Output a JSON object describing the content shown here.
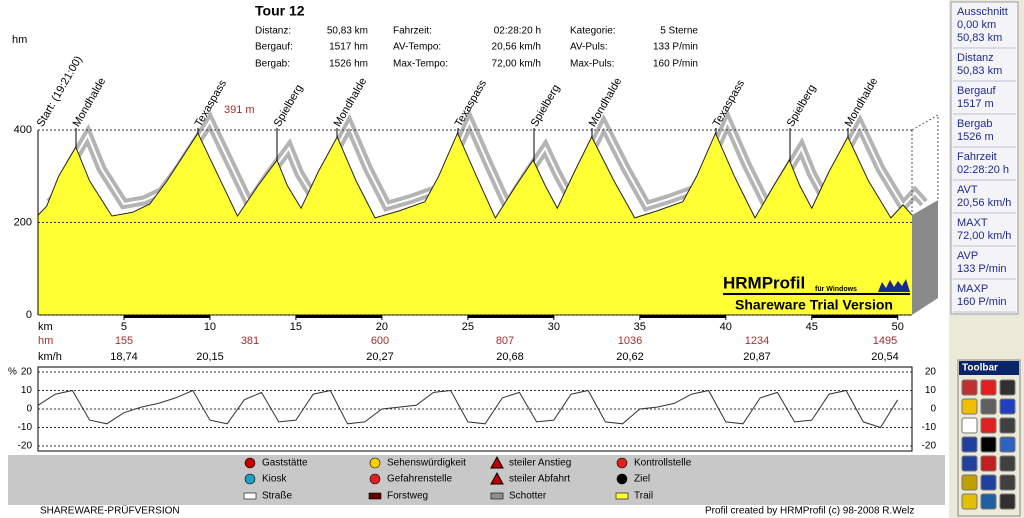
{
  "header": {
    "title": "Tour 12",
    "stats": [
      [
        {
          "label": "Distanz:",
          "value": "50,83 km"
        },
        {
          "label": "Fahrzeit:",
          "value": "02:28:20 h"
        },
        {
          "label": "Kategorie:",
          "value": "5 Sterne"
        }
      ],
      [
        {
          "label": "Bergauf:",
          "value": "1517 hm"
        },
        {
          "label": "AV-Tempo:",
          "value": "20,56 km/h"
        },
        {
          "label": "AV-Puls:",
          "value": "133 P/min"
        }
      ],
      [
        {
          "label": "Bergab:",
          "value": "1526 hm"
        },
        {
          "label": "Max-Tempo:",
          "value": "72,00 km/h"
        },
        {
          "label": "Max-Puls:",
          "value": "160 P/min"
        }
      ]
    ]
  },
  "chart_data": [
    {
      "type": "area",
      "y_label": "hm",
      "x_label": "km",
      "color": "#ffff33",
      "x": [
        0,
        0.5,
        1.2,
        2.2,
        3.0,
        4.3,
        5.5,
        6.5,
        7.5,
        9.3,
        10.5,
        11.6,
        12.8,
        13.9,
        14.5,
        15.3,
        16.3,
        17.4,
        18.5,
        19.6,
        21.0,
        22.5,
        23.3,
        24.4,
        25.5,
        26.6,
        27.8,
        28.8,
        29.5,
        30.2,
        31.2,
        32.2,
        33.5,
        34.7,
        36.0,
        37.5,
        38.3,
        39.4,
        40.5,
        41.7,
        42.8,
        43.7,
        44.3,
        45.0,
        46.0,
        47.1,
        48.3,
        49.6,
        50.3,
        50.83
      ],
      "values": [
        216,
        235,
        300,
        363,
        290,
        214,
        222,
        240,
        290,
        393,
        300,
        214,
        280,
        335,
        280,
        231,
        310,
        385,
        290,
        210,
        225,
        245,
        300,
        393,
        300,
        210,
        280,
        335,
        280,
        231,
        310,
        385,
        290,
        210,
        225,
        245,
        300,
        393,
        300,
        210,
        280,
        335,
        280,
        231,
        310,
        385,
        290,
        210,
        238,
        216
      ],
      "xlim": [
        0,
        50.83
      ],
      "ylim": [
        0,
        400
      ],
      "xticks": [
        5,
        10,
        15,
        20,
        25,
        30,
        35,
        40,
        45,
        50
      ],
      "yticks": [
        0,
        200,
        400
      ],
      "places": [
        "Start: (19:21:00)",
        "Mondhalde",
        "Texaspass",
        "Spielberg",
        "Mondhalde",
        "Texaspass",
        "Spielberg",
        "Mondhalde",
        "Texaspass",
        "Spielberg",
        "Mondhalde"
      ],
      "annotation": "391 m",
      "hm_row": {
        "label": "hm",
        "values": [
          155,
          381,
          600,
          807,
          1036,
          1234,
          1495
        ]
      },
      "speed_row": {
        "label": "km/h",
        "values": [
          "18,74",
          "20,15",
          "20,27",
          "20,68",
          "20,62",
          "20,87",
          "20,54"
        ]
      }
    },
    {
      "type": "line",
      "y_label": "%",
      "color": "#333333",
      "x": [
        0,
        1,
        2,
        3,
        4,
        5,
        6,
        7,
        8,
        9,
        10,
        11,
        12,
        13,
        14,
        15,
        16,
        17,
        18,
        19,
        20,
        21,
        22,
        23,
        24,
        25,
        26,
        27,
        28,
        29,
        30,
        31,
        32,
        33,
        34,
        35,
        36,
        37,
        38,
        39,
        40,
        41,
        42,
        43,
        44,
        45,
        46,
        47,
        48,
        49,
        50
      ],
      "values": [
        2,
        8,
        10,
        -6,
        -8,
        -2,
        1,
        3,
        6,
        10,
        -6,
        -8,
        5,
        9,
        -7,
        -6,
        8,
        10,
        -8,
        -7,
        0,
        1,
        2,
        9,
        10,
        -7,
        -8,
        6,
        9,
        -7,
        -6,
        8,
        10,
        -7,
        -8,
        0,
        1,
        3,
        8,
        10,
        -7,
        -8,
        6,
        9,
        -7,
        -6,
        8,
        10,
        -7,
        -10,
        5
      ],
      "xlim": [
        0,
        50.83
      ],
      "ylim": [
        -20,
        20
      ],
      "yticks": [
        20,
        10,
        0,
        -10,
        -20
      ],
      "y2ticks": [
        20,
        10,
        0,
        -10,
        -20
      ],
      "grid": true
    }
  ],
  "watermark": {
    "title": "HRMProfil",
    "subtitle": "für Windows",
    "notice": "Shareware Trial  Version"
  },
  "legend": [
    "Gaststätte",
    "Kiosk",
    "Straße",
    "Sehenswürdigkeit",
    "Gefahrenstelle",
    "Forstweg",
    "steiler Anstieg",
    "steiler Abfahrt",
    "Schotter",
    "Kontrollstelle",
    "Ziel",
    "Trail"
  ],
  "footer": {
    "left": "SHAREWARE-PRÜFVERSION",
    "right": "Profil created by HRMProfil (c) 98-2008 R.Welz"
  },
  "sidebar": [
    {
      "label": "Ausschnitt",
      "values": [
        "0,00 km",
        "50,83 km"
      ]
    },
    {
      "label": "Distanz",
      "values": [
        "50,83 km"
      ]
    },
    {
      "label": "Bergauf",
      "values": [
        "1517 m"
      ]
    },
    {
      "label": "Bergab",
      "values": [
        "1526 m"
      ]
    },
    {
      "label": "Fahrzeit",
      "values": [
        "02:28:20 h"
      ]
    },
    {
      "label": "AVT",
      "values": [
        "20,56 km/h"
      ]
    },
    {
      "label": "MAXT",
      "values": [
        "72,00 km/h"
      ]
    },
    {
      "label": "AVP",
      "values": [
        "133 P/min"
      ]
    },
    {
      "label": "MAXP",
      "values": [
        "160 P/min"
      ]
    }
  ],
  "toolbar": {
    "title": "Toolbar"
  }
}
